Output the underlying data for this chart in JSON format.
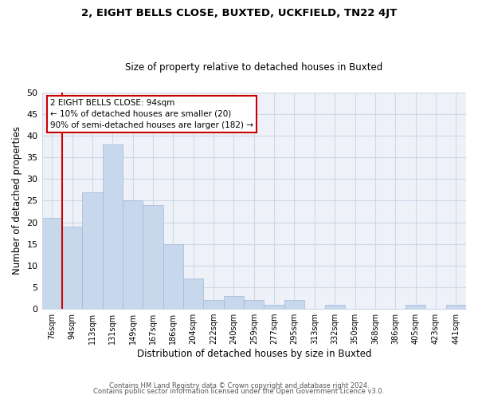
{
  "title": "2, EIGHT BELLS CLOSE, BUXTED, UCKFIELD, TN22 4JT",
  "subtitle": "Size of property relative to detached houses in Buxted",
  "xlabel": "Distribution of detached houses by size in Buxted",
  "ylabel": "Number of detached properties",
  "bar_color": "#c8d8ec",
  "bar_edge_color": "#a0b8d8",
  "highlight_color": "#cc0000",
  "bins": [
    "76sqm",
    "94sqm",
    "113sqm",
    "131sqm",
    "149sqm",
    "167sqm",
    "186sqm",
    "204sqm",
    "222sqm",
    "240sqm",
    "259sqm",
    "277sqm",
    "295sqm",
    "313sqm",
    "332sqm",
    "350sqm",
    "368sqm",
    "386sqm",
    "405sqm",
    "423sqm",
    "441sqm"
  ],
  "values": [
    21,
    19,
    27,
    38,
    25,
    24,
    15,
    7,
    2,
    3,
    2,
    1,
    2,
    0,
    1,
    0,
    0,
    0,
    1,
    0,
    1
  ],
  "highlight_bin_index": 1,
  "annotation_title": "2 EIGHT BELLS CLOSE: 94sqm",
  "annotation_line1": "← 10% of detached houses are smaller (20)",
  "annotation_line2": "90% of semi-detached houses are larger (182) →",
  "ylim": [
    0,
    50
  ],
  "yticks": [
    0,
    5,
    10,
    15,
    20,
    25,
    30,
    35,
    40,
    45,
    50
  ],
  "footer1": "Contains HM Land Registry data © Crown copyright and database right 2024.",
  "footer2": "Contains public sector information licensed under the Open Government Licence v3.0.",
  "background_color": "#ffffff",
  "grid_color": "#ccd8e8"
}
